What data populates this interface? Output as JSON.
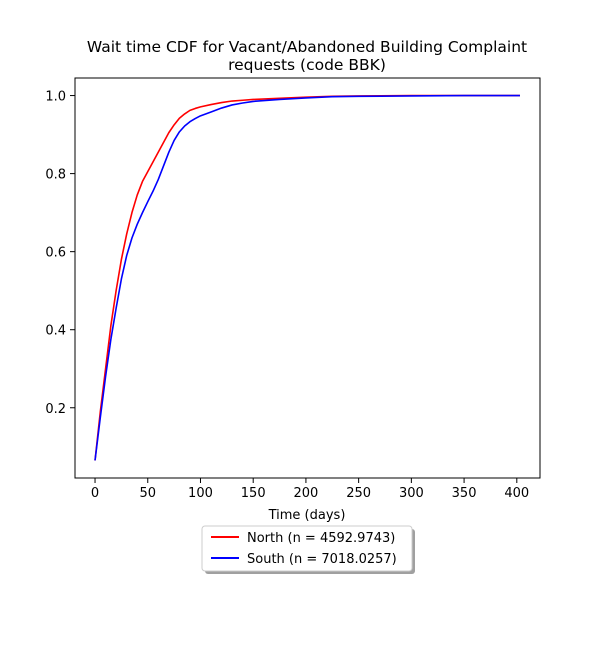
{
  "chart_data": {
    "type": "line",
    "title_lines": [
      "Wait time CDF for Vacant/Abandoned Building Complaint",
      "requests (code BBK)"
    ],
    "xlabel": "Time (days)",
    "ylabel": "",
    "xlim": [
      -19,
      422
    ],
    "ylim": [
      0.02,
      1.045
    ],
    "xticks": [
      0,
      50,
      100,
      150,
      200,
      250,
      300,
      350,
      400
    ],
    "xtick_labels": [
      "0",
      "50",
      "100",
      "150",
      "200",
      "250",
      "300",
      "350",
      "400"
    ],
    "yticks": [
      0.2,
      0.4,
      0.6,
      0.8,
      1.0
    ],
    "ytick_labels": [
      "0.2",
      "0.4",
      "0.6",
      "0.8",
      "1.0"
    ],
    "grid": false,
    "legend_position": "below-center",
    "series": [
      {
        "name": "North (n = 4592.9743)",
        "color": "#ff0000",
        "x": [
          0,
          5,
          10,
          15,
          20,
          25,
          30,
          35,
          40,
          45,
          50,
          55,
          60,
          65,
          70,
          75,
          80,
          85,
          90,
          95,
          100,
          110,
          120,
          130,
          140,
          150,
          175,
          200,
          225,
          250,
          300,
          350,
          403
        ],
        "y": [
          0.065,
          0.19,
          0.3,
          0.41,
          0.5,
          0.58,
          0.645,
          0.7,
          0.745,
          0.78,
          0.805,
          0.83,
          0.855,
          0.88,
          0.905,
          0.925,
          0.942,
          0.953,
          0.962,
          0.967,
          0.971,
          0.977,
          0.982,
          0.986,
          0.988,
          0.99,
          0.993,
          0.996,
          0.998,
          0.999,
          1.0,
          1.0,
          1.0
        ]
      },
      {
        "name": "South (n = 7018.0257)",
        "color": "#0000ff",
        "x": [
          0,
          5,
          10,
          15,
          20,
          25,
          30,
          35,
          40,
          45,
          50,
          55,
          60,
          65,
          70,
          75,
          80,
          85,
          90,
          95,
          100,
          110,
          120,
          130,
          140,
          150,
          175,
          200,
          225,
          250,
          300,
          350,
          403
        ],
        "y": [
          0.065,
          0.175,
          0.28,
          0.375,
          0.455,
          0.53,
          0.59,
          0.635,
          0.67,
          0.7,
          0.728,
          0.755,
          0.785,
          0.82,
          0.855,
          0.885,
          0.907,
          0.922,
          0.933,
          0.941,
          0.948,
          0.958,
          0.968,
          0.976,
          0.981,
          0.985,
          0.99,
          0.994,
          0.997,
          0.998,
          0.999,
          1.0,
          1.0
        ]
      }
    ]
  }
}
